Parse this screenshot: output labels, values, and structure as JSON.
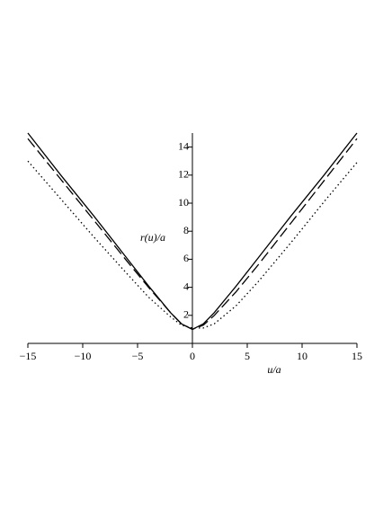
{
  "chart_data": {
    "type": "line",
    "xlabel": "u/a",
    "ylabel": "r(u)/a",
    "x": [
      -15,
      -12,
      -9,
      -6,
      -4,
      -2,
      -1,
      0,
      1,
      2,
      4,
      6,
      9,
      12,
      15
    ],
    "series": [
      {
        "color": "#000000",
        "dash": "solid",
        "values": [
          15.0,
          12.0,
          9.1,
          6.1,
          4.1,
          2.2,
          1.4,
          1.0,
          1.4,
          2.2,
          4.1,
          6.1,
          9.1,
          12.0,
          15.0
        ]
      },
      {
        "color": "#000000",
        "dash": "dashed",
        "values": [
          14.6,
          11.7,
          8.8,
          5.9,
          4.0,
          2.2,
          1.4,
          1.0,
          1.3,
          2.0,
          3.7,
          5.6,
          8.6,
          11.6,
          14.6
        ]
      },
      {
        "color": "#000000",
        "dash": "dotted",
        "values": [
          13.0,
          10.3,
          7.6,
          5.0,
          3.3,
          1.9,
          1.3,
          1.1,
          1.1,
          1.4,
          2.7,
          4.4,
          7.2,
          10.1,
          12.9
        ]
      }
    ],
    "xlim": [
      -15,
      15
    ],
    "ylim": [
      0,
      15
    ],
    "xticks": [
      {
        "value": -15,
        "label": "−15"
      },
      {
        "value": -10,
        "label": "−10"
      },
      {
        "value": -5,
        "label": "−5"
      },
      0,
      5,
      10,
      15
    ],
    "yticks": [
      2,
      4,
      6,
      8,
      10,
      12,
      14
    ],
    "grid": false
  }
}
